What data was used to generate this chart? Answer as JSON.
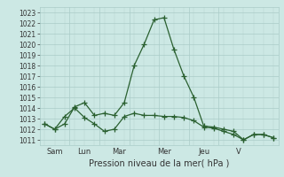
{
  "xlabel": "Pression niveau de la mer( hPa )",
  "ylim": [
    1010.5,
    1023.5
  ],
  "yticks": [
    1011,
    1012,
    1013,
    1014,
    1015,
    1016,
    1017,
    1018,
    1019,
    1020,
    1021,
    1022,
    1023
  ],
  "day_labels": [
    "Sam",
    "Lun",
    "Mar",
    "Mer",
    "Jeu",
    "V"
  ],
  "background_color": "#cce8e4",
  "grid_color": "#aaccc8",
  "line_color": "#2a6030",
  "series1": [
    1012.5,
    1012.0,
    1012.5,
    1014.1,
    1014.5,
    1013.3,
    1013.5,
    1013.3,
    1014.5,
    1018.0,
    1020.0,
    1022.3,
    1022.5,
    1019.5,
    1017.0,
    1015.0,
    1012.3,
    1012.2,
    1012.0,
    1011.8,
    1011.0,
    1011.5,
    1011.5,
    1011.2
  ],
  "series2": [
    1012.5,
    1012.0,
    1013.2,
    1014.0,
    1013.1,
    1012.5,
    1011.8,
    1012.0,
    1013.2,
    1013.5,
    1013.3,
    1013.3,
    1013.2,
    1013.2,
    1013.1,
    1012.8,
    1012.2,
    1012.1,
    1011.8,
    1011.5,
    1011.0,
    1011.5,
    1011.5,
    1011.2
  ],
  "n_points": 24,
  "xlabel_fontsize": 7,
  "ytick_fontsize": 5.5,
  "xtick_fontsize": 6,
  "vline_positions": [
    2.5,
    5.5,
    8.5,
    11.5,
    14.5,
    17.5
  ],
  "day_tick_positions": [
    1.0,
    4.0,
    7.5,
    12.0,
    16.0,
    19.5
  ]
}
